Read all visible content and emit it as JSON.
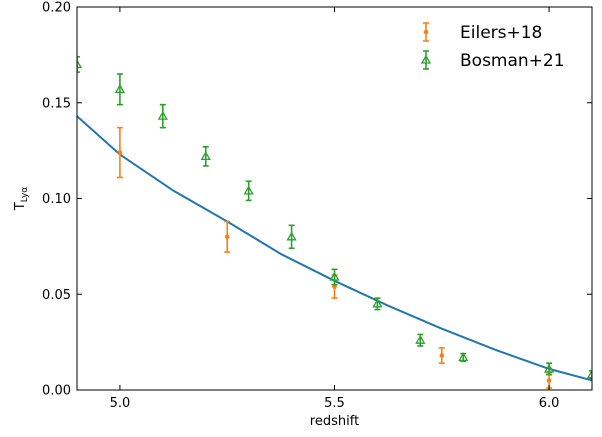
{
  "chart_data": {
    "type": "scatter",
    "xlabel": "redshift",
    "ylabel_main": "T",
    "ylabel_sub": "Lyα",
    "xlim": [
      4.9,
      6.1
    ],
    "ylim": [
      0.0,
      0.2
    ],
    "x_ticks": [
      5.0,
      5.5,
      6.0
    ],
    "x_tick_labels": [
      "5.0",
      "5.5",
      "6.0"
    ],
    "y_ticks": [
      0.0,
      0.05,
      0.1,
      0.15,
      0.2
    ],
    "y_tick_labels": [
      "0.00",
      "0.05",
      "0.10",
      "0.15",
      "0.20"
    ],
    "legend_position": "top-right",
    "grid": false,
    "model_line": {
      "color": "#1f77b4",
      "x": [
        4.9,
        5.0,
        5.125,
        5.25,
        5.375,
        5.5,
        5.625,
        5.75,
        5.875,
        6.0,
        6.1
      ],
      "y": [
        0.143,
        0.123,
        0.104,
        0.088,
        0.071,
        0.057,
        0.044,
        0.032,
        0.021,
        0.011,
        0.005
      ]
    },
    "series": [
      {
        "name": "Eilers+18",
        "color": "#ff7f0e",
        "marker": "dot",
        "x": [
          5.0,
          5.25,
          5.5,
          5.75,
          6.0
        ],
        "y": [
          0.124,
          0.08,
          0.054,
          0.018,
          0.005
        ],
        "err": [
          0.013,
          0.008,
          0.006,
          0.004,
          0.004
        ]
      },
      {
        "name": "Bosman+21",
        "color": "#2ca02c",
        "marker": "triangle",
        "x": [
          4.9,
          5.0,
          5.1,
          5.2,
          5.3,
          5.4,
          5.5,
          5.6,
          5.7,
          5.8,
          6.0,
          6.1
        ],
        "y": [
          0.17,
          0.157,
          0.143,
          0.122,
          0.104,
          0.08,
          0.059,
          0.045,
          0.026,
          0.017,
          0.011,
          0.008
        ],
        "err": [
          0.004,
          0.008,
          0.006,
          0.005,
          0.005,
          0.006,
          0.004,
          0.003,
          0.003,
          0.002,
          0.003,
          0.002
        ]
      }
    ]
  }
}
